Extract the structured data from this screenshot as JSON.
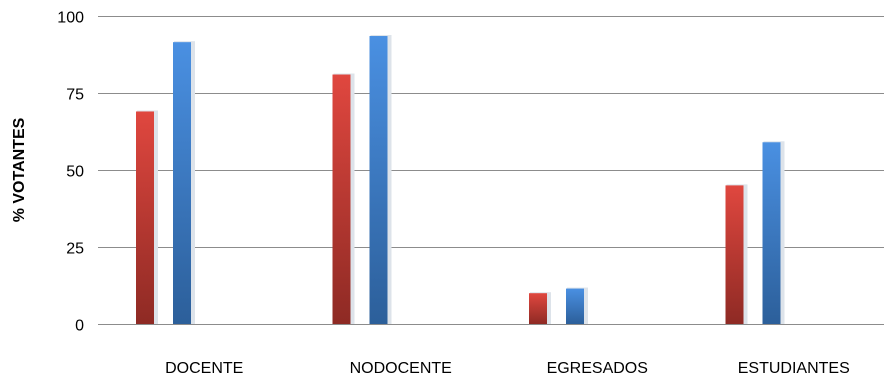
{
  "chart_data": {
    "type": "bar",
    "title": "",
    "xlabel": "",
    "ylabel": "% VOTANTES",
    "ylim": [
      0,
      100
    ],
    "yticks": [
      0,
      25,
      50,
      75,
      100
    ],
    "grid": true,
    "legend": "none",
    "categories": [
      "DOCENTE",
      "NODOCENTE",
      "EGRESADOS",
      "ESTUDIANTES"
    ],
    "series": [
      {
        "values": [
          69,
          81,
          10,
          45
        ],
        "color": "#c0392b"
      },
      {
        "values": [
          91.5,
          93.5,
          11.5,
          59
        ],
        "color": "#3a78c8"
      }
    ]
  }
}
